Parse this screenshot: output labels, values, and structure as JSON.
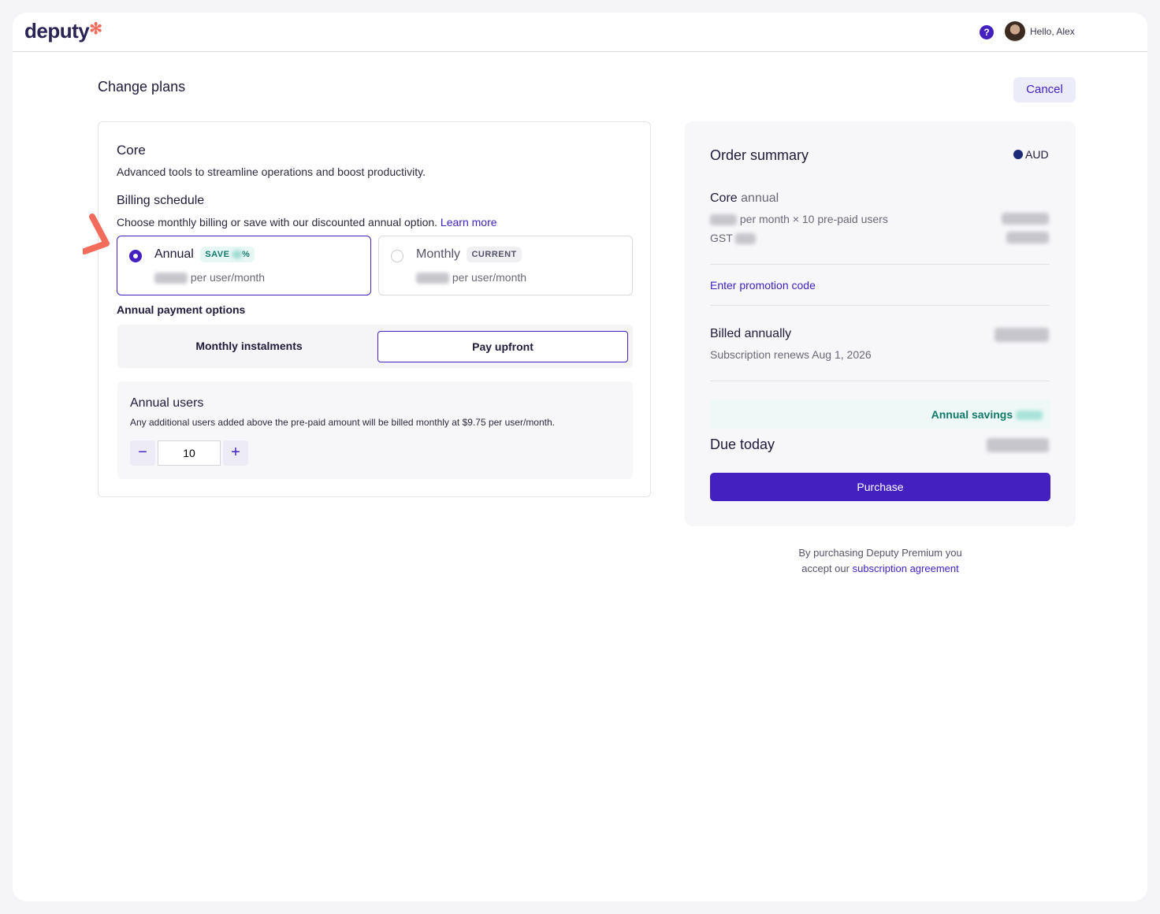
{
  "header": {
    "logo": "deputy",
    "greeting": "Hello, Alex",
    "help_icon": "question-circle-icon"
  },
  "page": {
    "title": "Change plans",
    "cancel_label": "Cancel"
  },
  "plan": {
    "name": "Core",
    "description": "Advanced tools to streamline operations and boost productivity.",
    "billing_title": "Billing schedule",
    "billing_text": "Choose monthly billing or save with our discounted annual option.",
    "learn_more": "Learn more",
    "options": [
      {
        "label": "Annual",
        "badge": "SAVE",
        "badge_suffix": "%",
        "price_suffix": "per user/month",
        "selected": true
      },
      {
        "label": "Monthly",
        "badge": "CURRENT",
        "price_suffix": "per user/month",
        "selected": false
      }
    ],
    "payment_options_title": "Annual payment options",
    "payment_options": [
      "Monthly instalments",
      "Pay upfront"
    ],
    "payment_selected": "Pay upfront",
    "users_title": "Annual users",
    "users_text": "Any additional users added above the pre-paid amount will be billed monthly at $9.75 per user/month.",
    "users_value": "10",
    "minus": "−",
    "plus": "+"
  },
  "summary": {
    "title": "Order summary",
    "currency": "AUD",
    "plan_name": "Core",
    "plan_term": "annual",
    "line1": "per month × 10 pre-paid users",
    "gst": "GST",
    "promo": "Enter promotion code",
    "billed": "Billed annually",
    "renews": "Subscription renews Aug 1, 2026",
    "savings": "Annual savings",
    "due": "Due today",
    "purchase": "Purchase",
    "legal_1": "By purchasing Deputy Premium you",
    "legal_2": "accept our",
    "legal_link": "subscription agreement"
  },
  "colors": {
    "accent": "#4321c0",
    "brand_coral": "#f26b5b",
    "savings": "#117a6a"
  }
}
